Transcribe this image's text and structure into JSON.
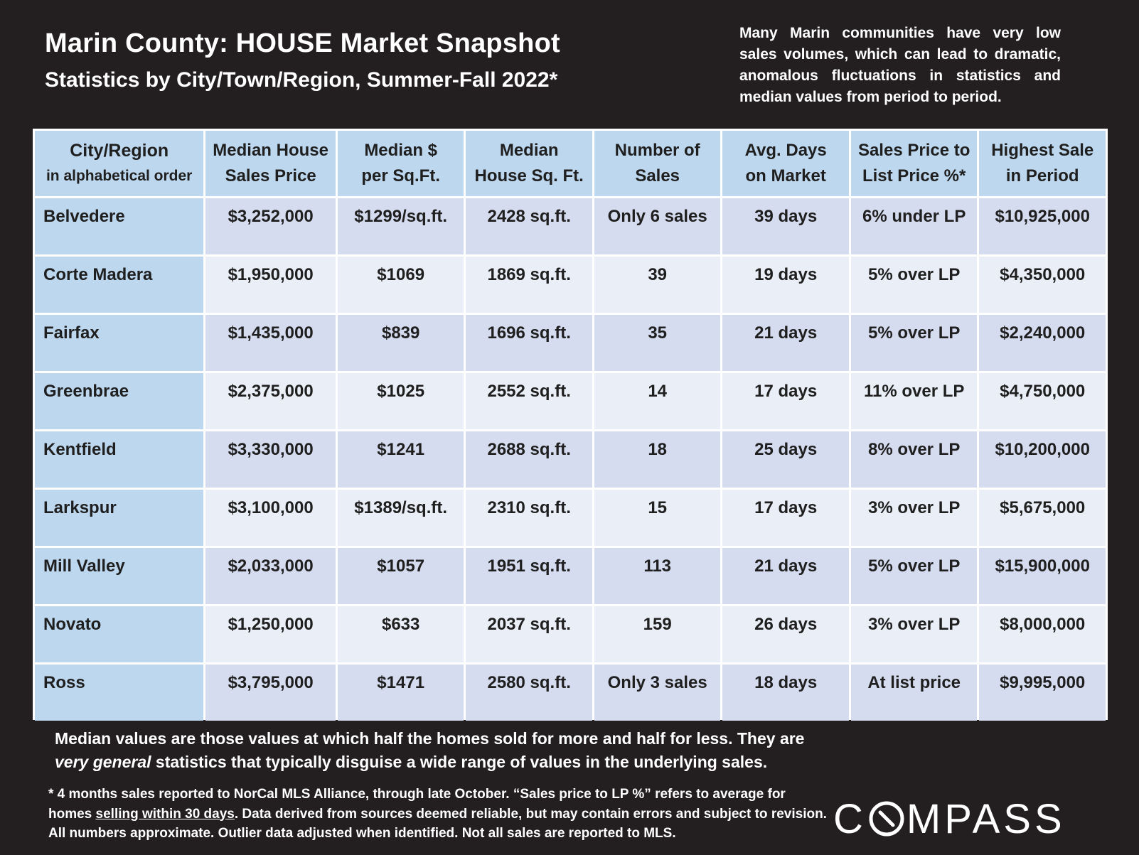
{
  "header": {
    "title": "Marin County: HOUSE Market Snapshot",
    "subtitle": "Statistics by City/Town/Region, Summer-Fall 2022*",
    "note": "Many Marin communities have very low sales volumes, which can lead to dramatic, anomalous fluctuations in statistics and median values from period to period."
  },
  "table": {
    "columns": [
      {
        "line1": "City/Region",
        "line2": "in alphabetical order"
      },
      {
        "line1": "Median House",
        "line2": "Sales Price"
      },
      {
        "line1": "Median $",
        "line2": "per Sq.Ft."
      },
      {
        "line1": "Median",
        "line2": "House Sq. Ft."
      },
      {
        "line1": "Number of",
        "line2": "Sales"
      },
      {
        "line1": "Avg. Days",
        "line2": "on Market"
      },
      {
        "line1": "Sales Price to",
        "line2": "List Price %*"
      },
      {
        "line1": "Highest Sale",
        "line2": "in Period"
      }
    ],
    "rows": [
      [
        "Belvedere",
        "$3,252,000",
        "$1299/sq.ft.",
        "2428 sq.ft.",
        "Only 6 sales",
        "39 days",
        "6% under LP",
        "$10,925,000"
      ],
      [
        "Corte Madera",
        "$1,950,000",
        "$1069",
        "1869 sq.ft.",
        "39",
        "19 days",
        "5% over LP",
        "$4,350,000"
      ],
      [
        "Fairfax",
        "$1,435,000",
        "$839",
        "1696 sq.ft.",
        "35",
        "21 days",
        "5% over LP",
        "$2,240,000"
      ],
      [
        "Greenbrae",
        "$2,375,000",
        "$1025",
        "2552 sq.ft.",
        "14",
        "17 days",
        "11% over LP",
        "$4,750,000"
      ],
      [
        "Kentfield",
        "$3,330,000",
        "$1241",
        "2688 sq.ft.",
        "18",
        "25 days",
        "8% over LP",
        "$10,200,000"
      ],
      [
        "Larkspur",
        "$3,100,000",
        "$1389/sq.ft.",
        "2310 sq.ft.",
        "15",
        "17 days",
        "3% over LP",
        "$5,675,000"
      ],
      [
        "Mill Valley",
        "$2,033,000",
        "$1057",
        "1951 sq.ft.",
        "113",
        "21 days",
        "5% over LP",
        "$15,900,000"
      ],
      [
        "Novato",
        "$1,250,000",
        "$633",
        "2037 sq.ft.",
        "159",
        "26 days",
        "3% over LP",
        "$8,000,000"
      ],
      [
        "Ross",
        "$3,795,000",
        "$1471",
        "2580 sq.ft.",
        "Only 3 sales",
        "18 days",
        "At list price",
        "$9,995,000"
      ]
    ]
  },
  "explanation": {
    "part1": "Median values are those values at which half the homes sold for more and half for less. They are ",
    "emphasis": "very general",
    "part2": " statistics that typically disguise a wide range of values in the underlying sales."
  },
  "footnote": {
    "part1": "* 4 months sales reported to NorCal MLS Alliance, through late October. “Sales price to LP %” refers to average for homes ",
    "underlined": "selling within 30 days",
    "part2": ". Data derived from sources deemed reliable, but may contain errors and subject to revision. All numbers approximate. Outlier data adjusted when identified. Not all sales are reported to MLS."
  },
  "logo": {
    "before": "C",
    "after": "MPASS"
  },
  "colors": {
    "background": "#231f20",
    "header_cell": "#bdd7ee",
    "row_dark": "#d6dcef",
    "row_light": "#e9eef7"
  }
}
